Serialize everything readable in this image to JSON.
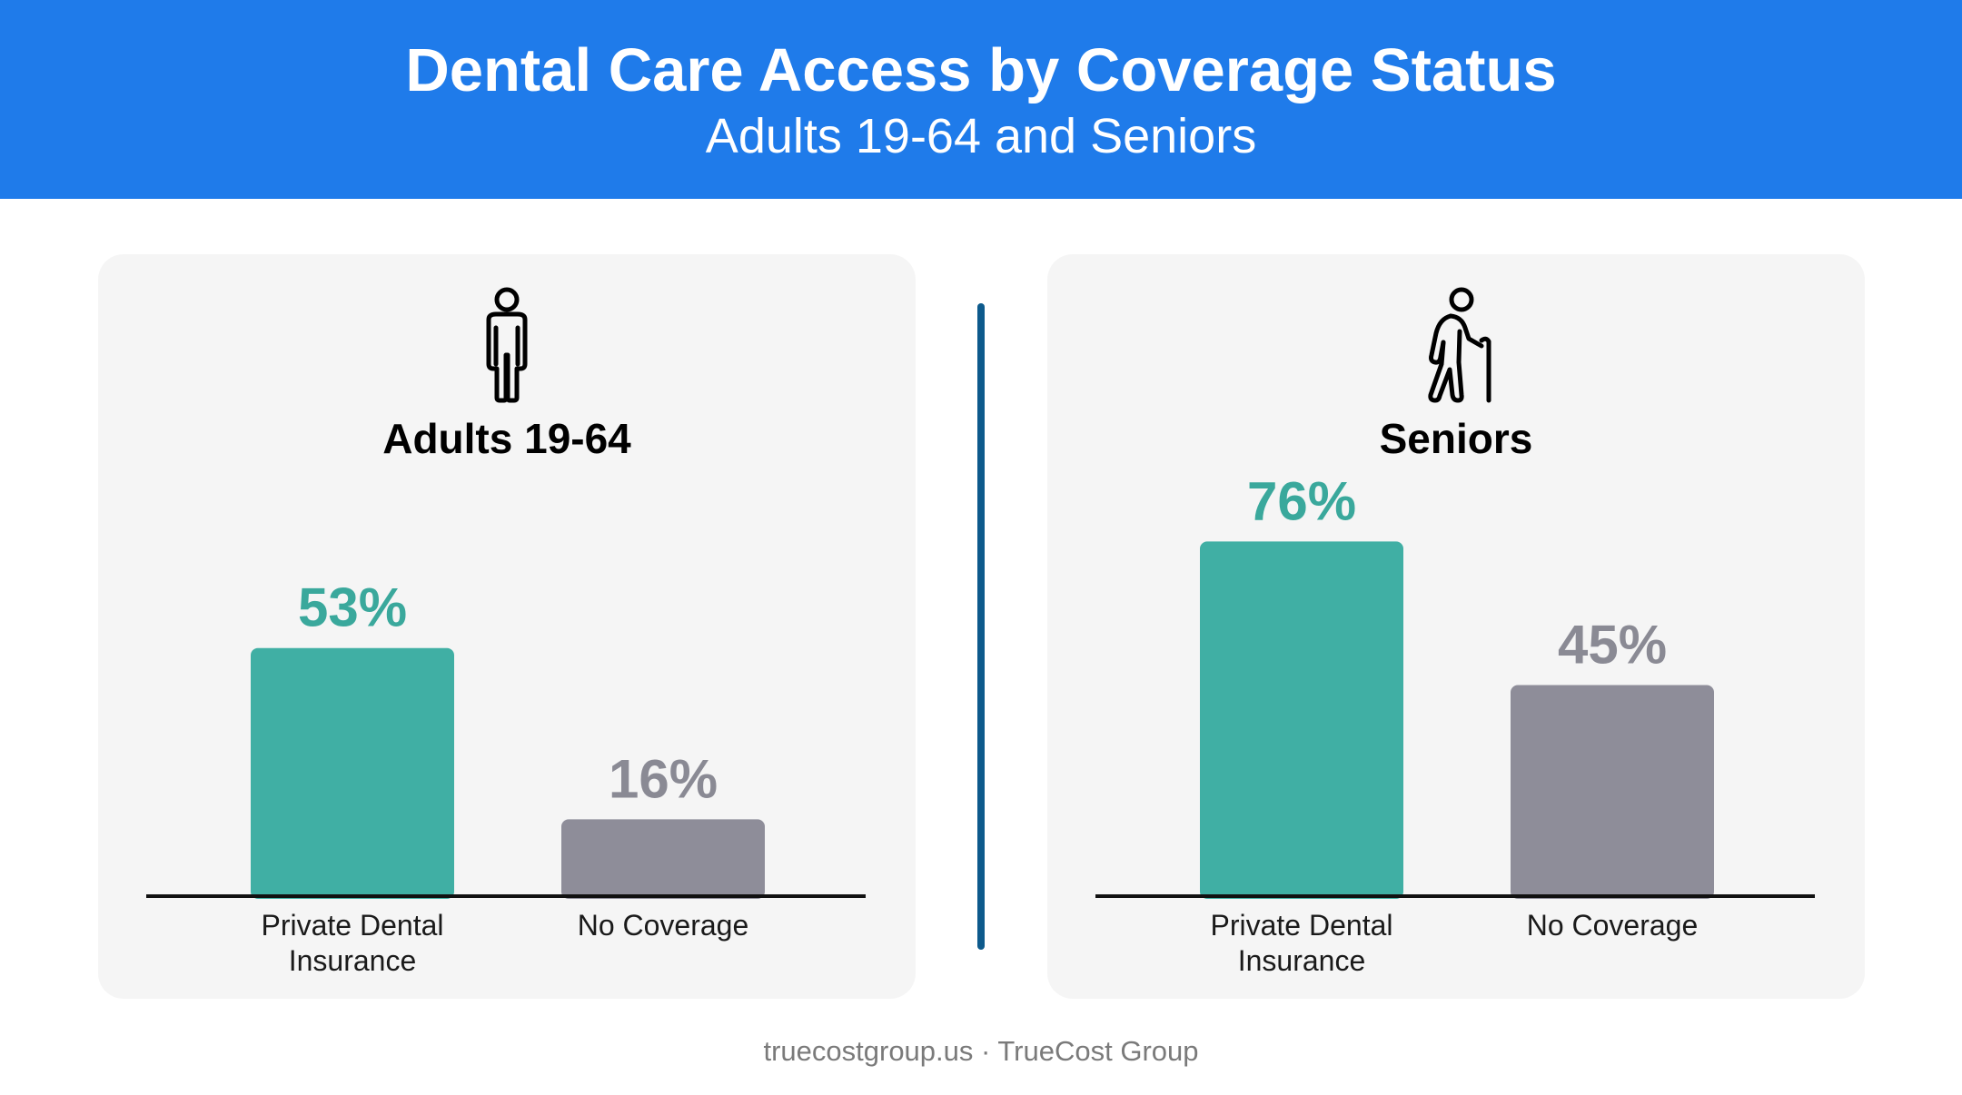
{
  "header": {
    "title": "Dental Care Access by Coverage Status",
    "subtitle": "Adults 19-64 and Seniors"
  },
  "footer": {
    "text": "truecostgroup.us · TrueCost Group"
  },
  "colors": {
    "header_bg": "#1f7bea",
    "panel_bg": "#f5f5f5",
    "divider": "#0d5a8c",
    "private": "#40afa4",
    "no_coverage": "#8e8d99",
    "label_private": "#3aa89c",
    "label_no_coverage": "#8a8a94",
    "axis": "#111111",
    "category_text": "#1a1a1a"
  },
  "panels": [
    {
      "title": "Adults 19-64",
      "icon": "adult-person-icon"
    },
    {
      "title": "Seniors",
      "icon": "senior-with-cane-icon"
    }
  ],
  "chart_data": [
    {
      "type": "bar",
      "title": "Adults 19-64",
      "categories": [
        [
          "Private Dental",
          "Insurance"
        ],
        [
          "No Coverage"
        ]
      ],
      "values": [
        53,
        16
      ],
      "value_labels": [
        "53%",
        "16%"
      ],
      "ylim": [
        0,
        100
      ],
      "grid": false
    },
    {
      "type": "bar",
      "title": "Seniors",
      "categories": [
        [
          "Private Dental",
          "Insurance"
        ],
        [
          "No Coverage"
        ]
      ],
      "values": [
        76,
        45
      ],
      "value_labels": [
        "76%",
        "45%"
      ],
      "ylim": [
        0,
        100
      ],
      "grid": false
    }
  ]
}
